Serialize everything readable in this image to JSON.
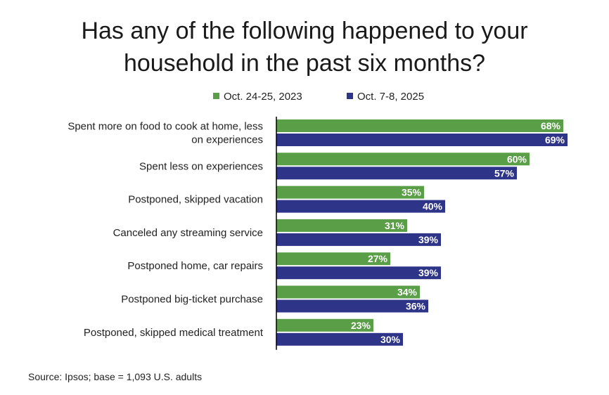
{
  "title_line1": "Has any of the following happened to your",
  "title_line2": "household in the past six months?",
  "colors": {
    "s2023": "#5a9e47",
    "s2025": "#2e3589"
  },
  "source": "Source: Ipsos; base = 1,093 U.S. adults",
  "chart_data": {
    "type": "bar",
    "orientation": "horizontal",
    "title": "Has any of the following happened to your household in the past six months?",
    "categories": [
      "Spent more on food to cook at home, less on experiences",
      "Spent less on experiences",
      "Postponed, skipped vacation",
      "Canceled any streaming service",
      "Postponed home, car repairs",
      "Postponed big-ticket purchase",
      "Postponed, skipped medical treatment"
    ],
    "category_lines": [
      [
        "Spent more on food to cook at home, less",
        "on experiences"
      ],
      [
        "Spent less on experiences"
      ],
      [
        "Postponed, skipped vacation"
      ],
      [
        "Canceled any streaming service"
      ],
      [
        "Postponed home, car repairs"
      ],
      [
        "Postponed big-ticket purchase"
      ],
      [
        "Postponed, skipped medical treatment"
      ]
    ],
    "series": [
      {
        "name": "Oct. 24-25, 2023",
        "values": [
          68,
          60,
          35,
          31,
          27,
          34,
          23
        ]
      },
      {
        "name": "Oct. 7-8, 2025",
        "values": [
          69,
          57,
          40,
          39,
          39,
          36,
          30
        ]
      }
    ],
    "value_suffix": "%",
    "legend_position": "top-center",
    "xlim": [
      0,
      100
    ],
    "grid": false
  }
}
